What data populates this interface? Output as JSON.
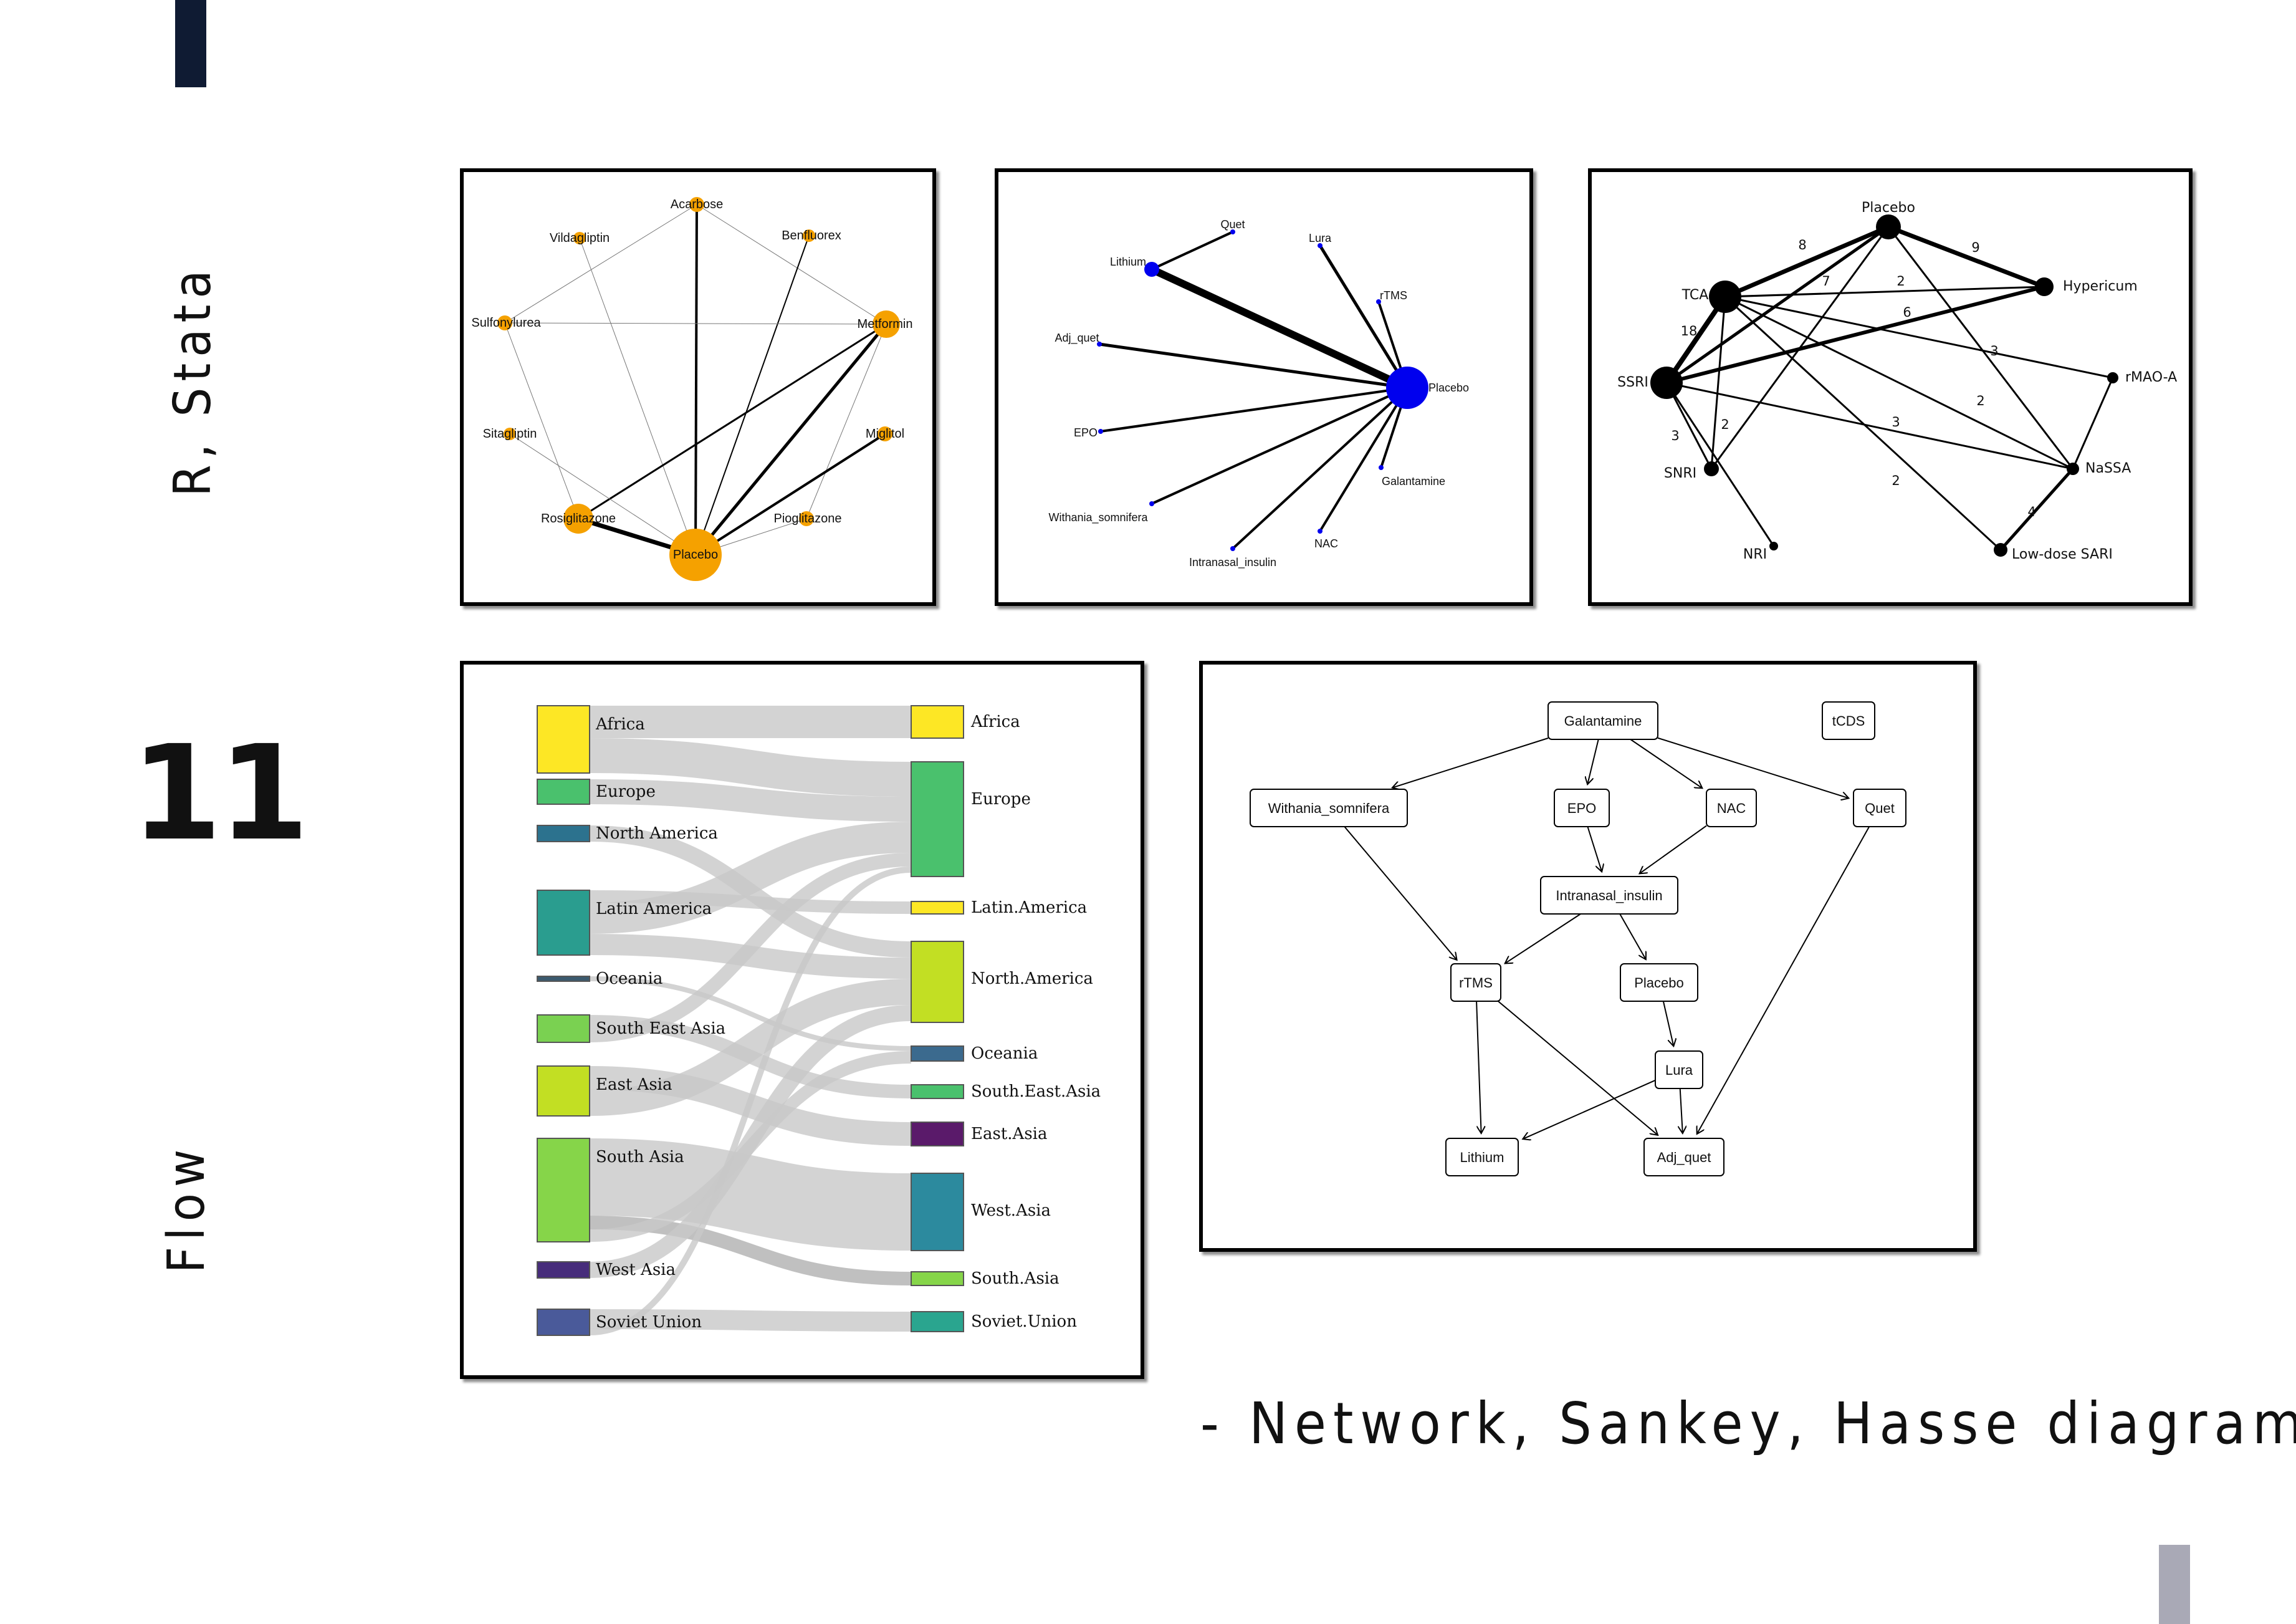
{
  "side_labels": {
    "top": "R, Stata",
    "number": "11",
    "bottom": "Flow"
  },
  "caption": "- Network, Sankey, Hasse diagram",
  "colors": {
    "accent_top": "#0f1b33",
    "accent_bottom": "#a9a9b6",
    "orange_node": "#f5a100",
    "blue_node": "#0000ee",
    "sankey_link": "#c8c8c8"
  },
  "network1": {
    "nodes": [
      {
        "id": "Acarbose",
        "label": "Acarbose",
        "r": 12
      },
      {
        "id": "Vildagliptin",
        "label": "Vildagliptin",
        "r": 10
      },
      {
        "id": "Benfluorex",
        "label": "Benfluorex",
        "r": 10
      },
      {
        "id": "Sulfonylurea",
        "label": "Sulfonylurea",
        "r": 12
      },
      {
        "id": "Metformin",
        "label": "Metformin",
        "r": 22
      },
      {
        "id": "Sitagliptin",
        "label": "Sitagliptin",
        "r": 10
      },
      {
        "id": "Miglitol",
        "label": "Miglitol",
        "r": 12
      },
      {
        "id": "Rosiglitazone",
        "label": "Rosiglitazone",
        "r": 24
      },
      {
        "id": "Pioglitazone",
        "label": "Pioglitazone",
        "r": 12
      },
      {
        "id": "Placebo",
        "label": "Placebo",
        "r": 42
      }
    ],
    "edges": [
      [
        "Acarbose",
        "Placebo",
        4
      ],
      [
        "Acarbose",
        "Sulfonylurea",
        1
      ],
      [
        "Acarbose",
        "Metformin",
        1
      ],
      [
        "Vildagliptin",
        "Placebo",
        1
      ],
      [
        "Benfluorex",
        "Placebo",
        2
      ],
      [
        "Sulfonylurea",
        "Metformin",
        1
      ],
      [
        "Sulfonylurea",
        "Rosiglitazone",
        1
      ],
      [
        "Metformin",
        "Rosiglitazone",
        3
      ],
      [
        "Metformin",
        "Placebo",
        5
      ],
      [
        "Metformin",
        "Pioglitazone",
        1
      ],
      [
        "Sitagliptin",
        "Placebo",
        1
      ],
      [
        "Miglitol",
        "Placebo",
        4
      ],
      [
        "Rosiglitazone",
        "Placebo",
        7
      ],
      [
        "Pioglitazone",
        "Placebo",
        1
      ]
    ]
  },
  "network2": {
    "nodes": [
      {
        "id": "Quet",
        "label": "Quet"
      },
      {
        "id": "Lithium",
        "label": "Lithium"
      },
      {
        "id": "Lura",
        "label": "Lura"
      },
      {
        "id": "rTMS",
        "label": "rTMS"
      },
      {
        "id": "Adj_quet",
        "label": "Adj_quet"
      },
      {
        "id": "Placebo",
        "label": "Placebo"
      },
      {
        "id": "EPO",
        "label": "EPO"
      },
      {
        "id": "Galantamine",
        "label": "Galantamine"
      },
      {
        "id": "Withania_somnifera",
        "label": "Withania_somnifera"
      },
      {
        "id": "NAC",
        "label": "NAC"
      },
      {
        "id": "Intranasal_insulin",
        "label": "Intranasal_insulin"
      }
    ],
    "edges": [
      [
        "Lithium",
        "Quet",
        4
      ],
      [
        "Lithium",
        "Placebo",
        12
      ],
      [
        "Lura",
        "Placebo",
        5
      ],
      [
        "rTMS",
        "Placebo",
        4
      ],
      [
        "Adj_quet",
        "Placebo",
        5
      ],
      [
        "EPO",
        "Placebo",
        4
      ],
      [
        "Galantamine",
        "Placebo",
        4
      ],
      [
        "Withania_somnifera",
        "Placebo",
        4
      ],
      [
        "NAC",
        "Placebo",
        4
      ],
      [
        "Intranasal_insulin",
        "Placebo",
        4
      ]
    ]
  },
  "network3": {
    "nodes": [
      {
        "id": "Placebo",
        "label": "Placebo"
      },
      {
        "id": "TCA",
        "label": "TCA"
      },
      {
        "id": "Hypericum",
        "label": "Hypericum"
      },
      {
        "id": "SSRI",
        "label": "SSRI"
      },
      {
        "id": "rMAO-A",
        "label": "rMAO-A"
      },
      {
        "id": "SNRI",
        "label": "SNRI"
      },
      {
        "id": "NaSSA",
        "label": "NaSSA"
      },
      {
        "id": "NRI",
        "label": "NRI"
      },
      {
        "id": "Low-dose SARI",
        "label": "Low-dose SARI"
      }
    ],
    "edges": [
      [
        "TCA",
        "Placebo",
        "8"
      ],
      [
        "Placebo",
        "Hypericum",
        "9"
      ],
      [
        "SSRI",
        "Placebo",
        "7"
      ],
      [
        "TCA",
        "Hypericum",
        "2"
      ],
      [
        "SSRI",
        "Hypericum",
        "6"
      ],
      [
        "TCA",
        "SSRI",
        "18"
      ],
      [
        "TCA",
        "rMAO-A",
        "3"
      ],
      [
        "SSRI",
        "NaSSA",
        "3"
      ],
      [
        "SSRI",
        "SNRI",
        "3"
      ],
      [
        "TCA",
        "SNRI",
        "2"
      ],
      [
        "Placebo",
        "NaSSA",
        "2"
      ],
      [
        "TCA",
        "Low-dose SARI",
        "2"
      ],
      [
        "NaSSA",
        "Low-dose SARI",
        "4"
      ],
      [
        "SSRI",
        "NRI",
        ""
      ],
      [
        "Placebo",
        "SNRI",
        ""
      ],
      [
        "rMAO-A",
        "NaSSA",
        ""
      ],
      [
        "TCA",
        "NaSSA",
        ""
      ]
    ]
  },
  "sankey": {
    "left": [
      {
        "label": "Africa",
        "color": "#fde725"
      },
      {
        "label": "Europe",
        "color": "#4ac16d"
      },
      {
        "label": "North America",
        "color": "#2c728e"
      },
      {
        "label": "Latin America",
        "color": "#2a9d8f"
      },
      {
        "label": "Oceania",
        "color": "#3b5a6e"
      },
      {
        "label": "South East Asia",
        "color": "#7ad151"
      },
      {
        "label": "East Asia",
        "color": "#c2df23"
      },
      {
        "label": "South Asia",
        "color": "#86d549"
      },
      {
        "label": "West Asia",
        "color": "#472d7b"
      },
      {
        "label": "Soviet Union",
        "color": "#4a5a9a"
      }
    ],
    "right": [
      {
        "label": "Africa",
        "color": "#fde725"
      },
      {
        "label": "Europe",
        "color": "#4ac16d"
      },
      {
        "label": "Latin.America",
        "color": "#fde725"
      },
      {
        "label": "North.America",
        "color": "#c2df23"
      },
      {
        "label": "Oceania",
        "color": "#3b6a8e"
      },
      {
        "label": "South.East.Asia",
        "color": "#4ac16d"
      },
      {
        "label": "East.Asia",
        "color": "#5a1a6a"
      },
      {
        "label": "West.Asia",
        "color": "#2c8a9e"
      },
      {
        "label": "South.Asia",
        "color": "#86d549"
      },
      {
        "label": "Soviet.Union",
        "color": "#2aa58f"
      }
    ]
  },
  "hasse": {
    "nodes": [
      {
        "id": "Galantamine",
        "label": "Galantamine"
      },
      {
        "id": "tCDS",
        "label": "tCDS"
      },
      {
        "id": "Withania_somnifera",
        "label": "Withania_somnifera"
      },
      {
        "id": "EPO",
        "label": "EPO"
      },
      {
        "id": "NAC",
        "label": "NAC"
      },
      {
        "id": "Quet",
        "label": "Quet"
      },
      {
        "id": "Intranasal_insulin",
        "label": "Intranasal_insulin"
      },
      {
        "id": "rTMS",
        "label": "rTMS"
      },
      {
        "id": "Placebo",
        "label": "Placebo"
      },
      {
        "id": "Lura",
        "label": "Lura"
      },
      {
        "id": "Lithium",
        "label": "Lithium"
      },
      {
        "id": "Adj_quet",
        "label": "Adj_quet"
      }
    ],
    "edges": [
      [
        "Galantamine",
        "Withania_somnifera"
      ],
      [
        "Galantamine",
        "EPO"
      ],
      [
        "Galantamine",
        "NAC"
      ],
      [
        "Galantamine",
        "Quet"
      ],
      [
        "EPO",
        "Intranasal_insulin"
      ],
      [
        "NAC",
        "Intranasal_insulin"
      ],
      [
        "Withania_somnifera",
        "rTMS"
      ],
      [
        "Intranasal_insulin",
        "rTMS"
      ],
      [
        "Intranasal_insulin",
        "Placebo"
      ],
      [
        "Placebo",
        "Lura"
      ],
      [
        "rTMS",
        "Lithium"
      ],
      [
        "rTMS",
        "Adj_quet"
      ],
      [
        "Lura",
        "Lithium"
      ],
      [
        "Lura",
        "Adj_quet"
      ],
      [
        "Quet",
        "Adj_quet"
      ]
    ]
  }
}
